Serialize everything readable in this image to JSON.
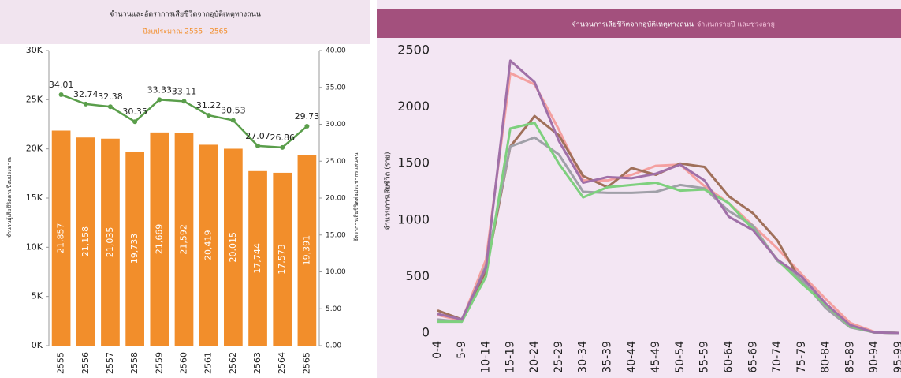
{
  "chart_data": [
    {
      "type": "bar",
      "title": "จำนวนและอัตราการเสียชีวิตจากอุบัติเหตุทางถนน",
      "subtitle": "ปีงบประมาณ 2555 - 2565",
      "ylabel": "จำนวนผู้เสียชีวิตตามปีงบประมาณ",
      "y2label": "อัตราการเสียชีวิตต่อประชากรแสนคน",
      "categories": [
        "2555",
        "2556",
        "2557",
        "2558",
        "2559",
        "2560",
        "2561",
        "2562",
        "2563",
        "2564",
        "2565"
      ],
      "series": [
        {
          "type": "bar",
          "color": "#f28e2b",
          "values": [
            21857,
            21158,
            21035,
            19733,
            21669,
            21592,
            20419,
            20015,
            17744,
            17573,
            19391
          ],
          "value_labels": [
            "21,857",
            "21,158",
            "21,035",
            "19,733",
            "21,669",
            "21,592",
            "20,419",
            "20,015",
            "17,744",
            "17,573",
            "19,391"
          ]
        },
        {
          "type": "line",
          "axis": "y2",
          "color": "#5a9e4b",
          "values": [
            34.01,
            32.74,
            32.38,
            30.35,
            33.33,
            33.11,
            31.22,
            30.53,
            27.07,
            26.86,
            29.73
          ]
        }
      ],
      "ylim": [
        0,
        30000
      ],
      "yticks": [
        {
          "value": 0,
          "label": "0K"
        },
        {
          "value": 5000,
          "label": "5K"
        },
        {
          "value": 10000,
          "label": "10K"
        },
        {
          "value": 15000,
          "label": "15K"
        },
        {
          "value": 20000,
          "label": "20K"
        },
        {
          "value": 25000,
          "label": "25K"
        },
        {
          "value": 30000,
          "label": "30K"
        }
      ],
      "y2lim": [
        0,
        40
      ],
      "y2ticks": [
        {
          "value": 0,
          "label": "0.00"
        },
        {
          "value": 5,
          "label": "5.00"
        },
        {
          "value": 10,
          "label": "10.00"
        },
        {
          "value": 15,
          "label": "15.00"
        },
        {
          "value": 20,
          "label": "20.00"
        },
        {
          "value": 25,
          "label": "25.00"
        },
        {
          "value": 30,
          "label": "30.00"
        },
        {
          "value": 35,
          "label": "35.00"
        },
        {
          "value": 40,
          "label": "40.00"
        }
      ]
    },
    {
      "type": "line",
      "title": "จำนวนการเสียชีวิตจากอุบัติเหตุทางถนน",
      "title_detail": "จำแนกรายปี และช่วงอายุ",
      "ylabel": "จำนวนการเสียชีวิต (ราย)",
      "categories": [
        "0-4",
        "5-9",
        "10-14",
        "15-19",
        "20-24",
        "25-29",
        "30-34",
        "35-39",
        "40-44",
        "45-49",
        "50-54",
        "55-59",
        "60-64",
        "65-69",
        "70-74",
        "75-79",
        "80-84",
        "85-89",
        "90-94",
        "95-99"
      ],
      "series": [
        {
          "color": "#f4a0a0",
          "values": [
            160,
            110,
            650,
            2300,
            2200,
            1800,
            1350,
            1350,
            1400,
            1480,
            1490,
            1300,
            1150,
            950,
            750,
            520,
            300,
            90,
            10,
            0
          ]
        },
        {
          "color": "#a0705a",
          "values": [
            200,
            120,
            550,
            1650,
            1920,
            1750,
            1390,
            1290,
            1460,
            1400,
            1500,
            1470,
            1210,
            1060,
            820,
            450,
            250,
            60,
            5,
            0
          ]
        },
        {
          "color": "#a0a0a8",
          "values": [
            120,
            100,
            600,
            1650,
            1730,
            1580,
            1250,
            1240,
            1240,
            1250,
            1310,
            1280,
            1080,
            950,
            640,
            470,
            220,
            50,
            5,
            0
          ]
        },
        {
          "color": "#7ed07e",
          "values": [
            100,
            100,
            500,
            1810,
            1860,
            1500,
            1200,
            1290,
            1310,
            1330,
            1260,
            1270,
            1150,
            920,
            650,
            440,
            250,
            60,
            5,
            0
          ]
        },
        {
          "color": "#a070a8",
          "values": [
            170,
            120,
            580,
            2410,
            2220,
            1700,
            1330,
            1380,
            1370,
            1410,
            1490,
            1350,
            1030,
            910,
            650,
            500,
            260,
            70,
            5,
            0
          ]
        }
      ],
      "ylim": [
        0,
        2500
      ],
      "yticks": [
        0,
        500,
        1000,
        1500,
        2000,
        2500
      ]
    }
  ]
}
